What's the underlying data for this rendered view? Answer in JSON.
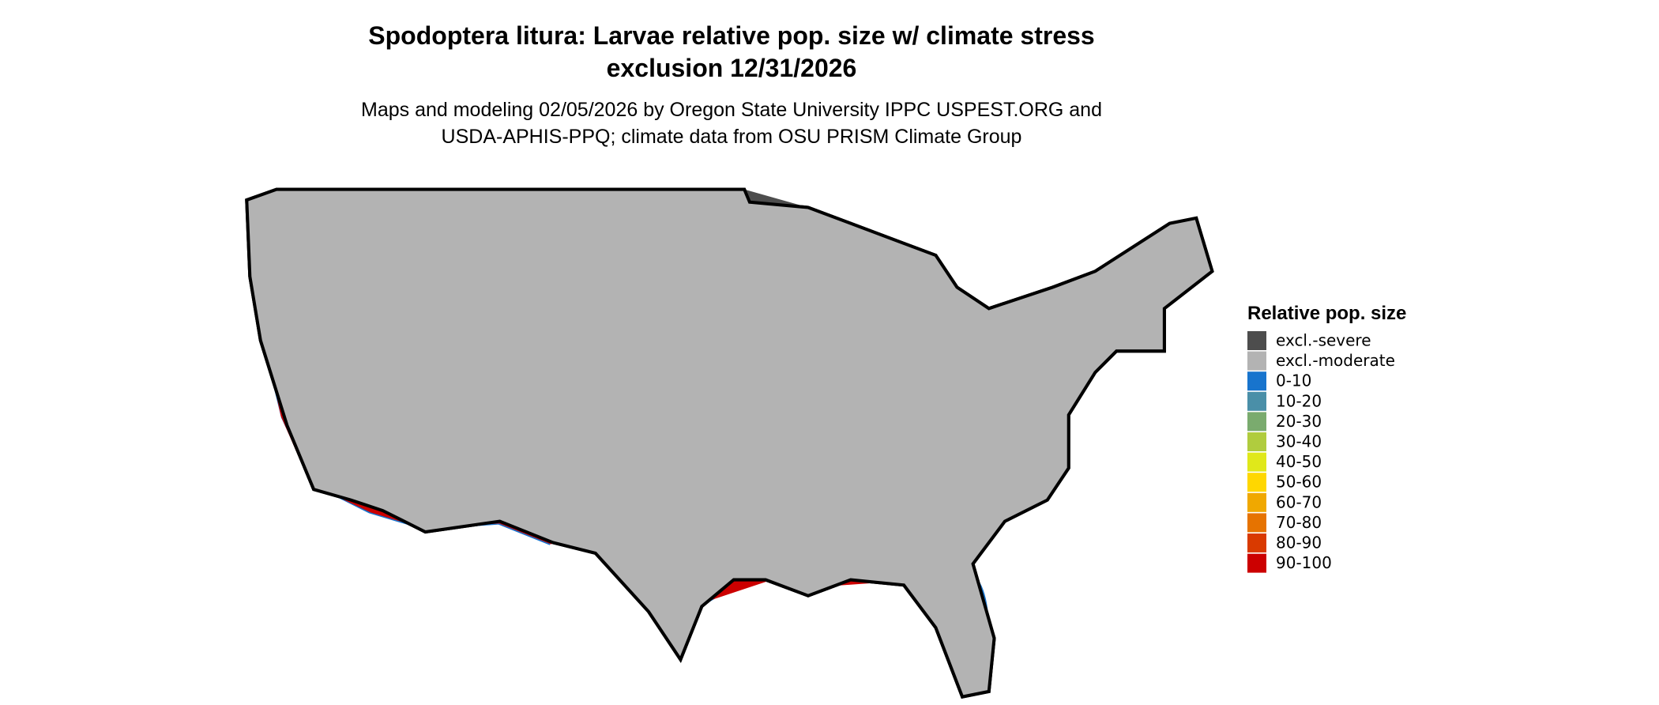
{
  "title": [
    "Spodoptera litura: Larvae relative pop. size w/ climate stress",
    "exclusion 12/31/2026"
  ],
  "subtitle": [
    "Maps and modeling 02/05/2026 by Oregon State University IPPC USPEST.ORG and",
    "USDA-APHIS-PPQ; climate data from OSU PRISM Climate Group"
  ],
  "legend": {
    "title": "Relative pop. size",
    "items": [
      {
        "label": "excl.-severe",
        "color": "#4d4d4d"
      },
      {
        "label": "excl.-moderate",
        "color": "#b3b3b3"
      },
      {
        "label": "0-10",
        "color": "#1874cd"
      },
      {
        "label": "10-20",
        "color": "#4a8fa8"
      },
      {
        "label": "20-30",
        "color": "#7aab6e"
      },
      {
        "label": "30-40",
        "color": "#b0cc3e"
      },
      {
        "label": "40-50",
        "color": "#e0e81a"
      },
      {
        "label": "50-60",
        "color": "#ffd700"
      },
      {
        "label": "60-70",
        "color": "#f0a800"
      },
      {
        "label": "70-80",
        "color": "#e67300"
      },
      {
        "label": "80-90",
        "color": "#d93a00"
      },
      {
        "label": "90-100",
        "color": "#cc0000"
      }
    ]
  }
}
